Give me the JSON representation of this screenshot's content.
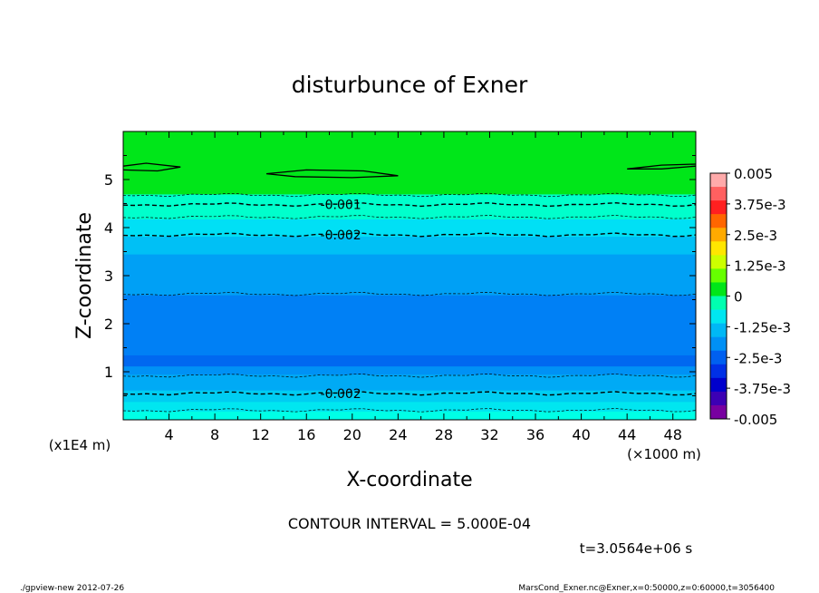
{
  "chart_data": {
    "type": "heatmap",
    "title": "disturbunce of Exner",
    "xlabel": "X-coordinate",
    "ylabel": "Z-coordinate",
    "x_unit_label": "(×1000 m)",
    "y_unit_label": "(x1E4 m)",
    "xlim": [
      0,
      50
    ],
    "ylim": [
      0,
      6
    ],
    "x_ticks": [
      "4",
      "8",
      "12",
      "16",
      "20",
      "24",
      "28",
      "32",
      "36",
      "40",
      "44",
      "48"
    ],
    "y_ticks": [
      "1",
      "2",
      "3",
      "4",
      "5"
    ],
    "colorbar": {
      "labels": [
        "0.005",
        "3.75e-3",
        "2.5e-3",
        "1.25e-3",
        "0",
        "-1.25e-3",
        "-2.5e-3",
        "-3.75e-3",
        "-0.005"
      ],
      "range": [
        -0.005,
        0.005
      ]
    },
    "bands": [
      {
        "z0": 0.0,
        "z1": 0.18,
        "value": -0.00125,
        "color": "#00ffe6"
      },
      {
        "z0": 0.18,
        "z1": 0.38,
        "value": -0.00175,
        "color": "#00e6f0"
      },
      {
        "z0": 0.38,
        "z1": 0.62,
        "value": -0.0022,
        "color": "#00cdf2"
      },
      {
        "z0": 0.62,
        "z1": 0.95,
        "value": -0.0027,
        "color": "#00aaf5"
      },
      {
        "z0": 0.95,
        "z1": 1.12,
        "value": -0.003,
        "color": "#0091f5"
      },
      {
        "z0": 1.12,
        "z1": 1.35,
        "value": -0.0034,
        "color": "#0068f0"
      },
      {
        "z0": 1.35,
        "z1": 2.6,
        "value": -0.0031,
        "color": "#0080f5"
      },
      {
        "z0": 2.6,
        "z1": 3.45,
        "value": -0.0026,
        "color": "#00a0f5"
      },
      {
        "z0": 3.45,
        "z1": 3.82,
        "value": -0.0022,
        "color": "#00c0f5"
      },
      {
        "z0": 3.82,
        "z1": 4.18,
        "value": -0.0017,
        "color": "#00e0f5"
      },
      {
        "z0": 4.18,
        "z1": 4.7,
        "value": -0.0009,
        "color": "#00ffcc"
      },
      {
        "z0": 4.7,
        "z1": 6.0,
        "value": 0.0,
        "color": "#00e619"
      }
    ],
    "contours": [
      {
        "z": 0.2,
        "style": "dashed",
        "label": ""
      },
      {
        "z": 0.55,
        "style": "dashed",
        "label": "-0.002"
      },
      {
        "z": 0.92,
        "style": "dashed",
        "label": ""
      },
      {
        "z": 2.62,
        "style": "dashed",
        "label": ""
      },
      {
        "z": 3.85,
        "style": "dashed",
        "label": "-0.002"
      },
      {
        "z": 4.22,
        "style": "dashed",
        "label": ""
      },
      {
        "z": 4.48,
        "style": "dashed",
        "label": "-0.001"
      },
      {
        "z": 4.68,
        "style": "dashed",
        "label": ""
      }
    ],
    "zero_contours": [
      {
        "x": [
          0,
          2,
          5,
          3,
          0
        ],
        "z": [
          5.28,
          5.34,
          5.26,
          5.18,
          5.2
        ]
      },
      {
        "x": [
          12.5,
          16,
          21,
          24,
          20,
          15,
          12.5
        ],
        "z": [
          5.12,
          5.2,
          5.18,
          5.08,
          5.04,
          5.06,
          5.12
        ]
      },
      {
        "x": [
          50,
          47,
          44,
          47,
          50
        ],
        "z": [
          5.32,
          5.3,
          5.22,
          5.22,
          5.28
        ]
      }
    ],
    "contour_interval_text": "CONTOUR INTERVAL = 5.000E-04",
    "time_text": "t=3.0564e+06 s"
  },
  "footer": {
    "left": "./gpview-new  2012-07-26",
    "right": "MarsCond_Exner.nc@Exner,x=0:50000,z=0:60000,t=3056400"
  }
}
